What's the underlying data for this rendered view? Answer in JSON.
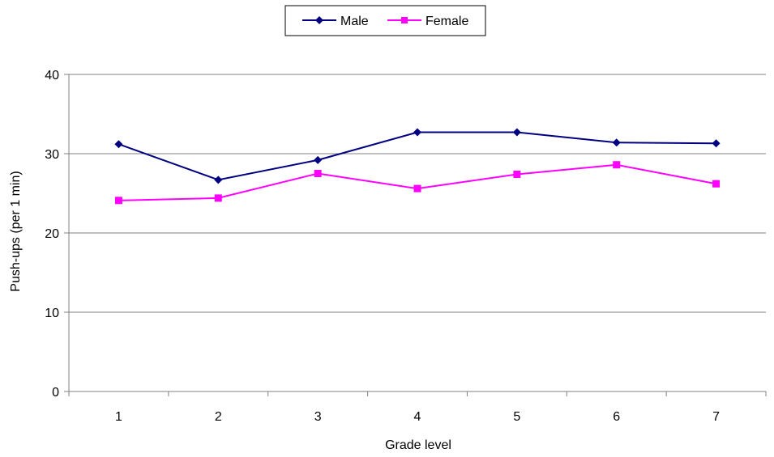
{
  "chart_data": {
    "type": "line",
    "title": "",
    "xlabel": "Grade level",
    "ylabel": "Push-ups (per 1 min)",
    "categories": [
      "1",
      "2",
      "3",
      "4",
      "5",
      "6",
      "7"
    ],
    "ylim": [
      0,
      40
    ],
    "yticks": [
      "0",
      "10",
      "20",
      "30",
      "40"
    ],
    "grid": "horizontal",
    "legend_position": "top-center",
    "series": [
      {
        "name": "Male",
        "values": [
          31.2,
          26.7,
          29.2,
          32.7,
          32.7,
          31.4,
          31.3
        ],
        "color": "#000080",
        "marker": "diamond"
      },
      {
        "name": "Female",
        "values": [
          24.1,
          24.4,
          27.5,
          25.6,
          27.4,
          28.6,
          26.2
        ],
        "color": "#ff00ff",
        "marker": "square"
      }
    ]
  }
}
